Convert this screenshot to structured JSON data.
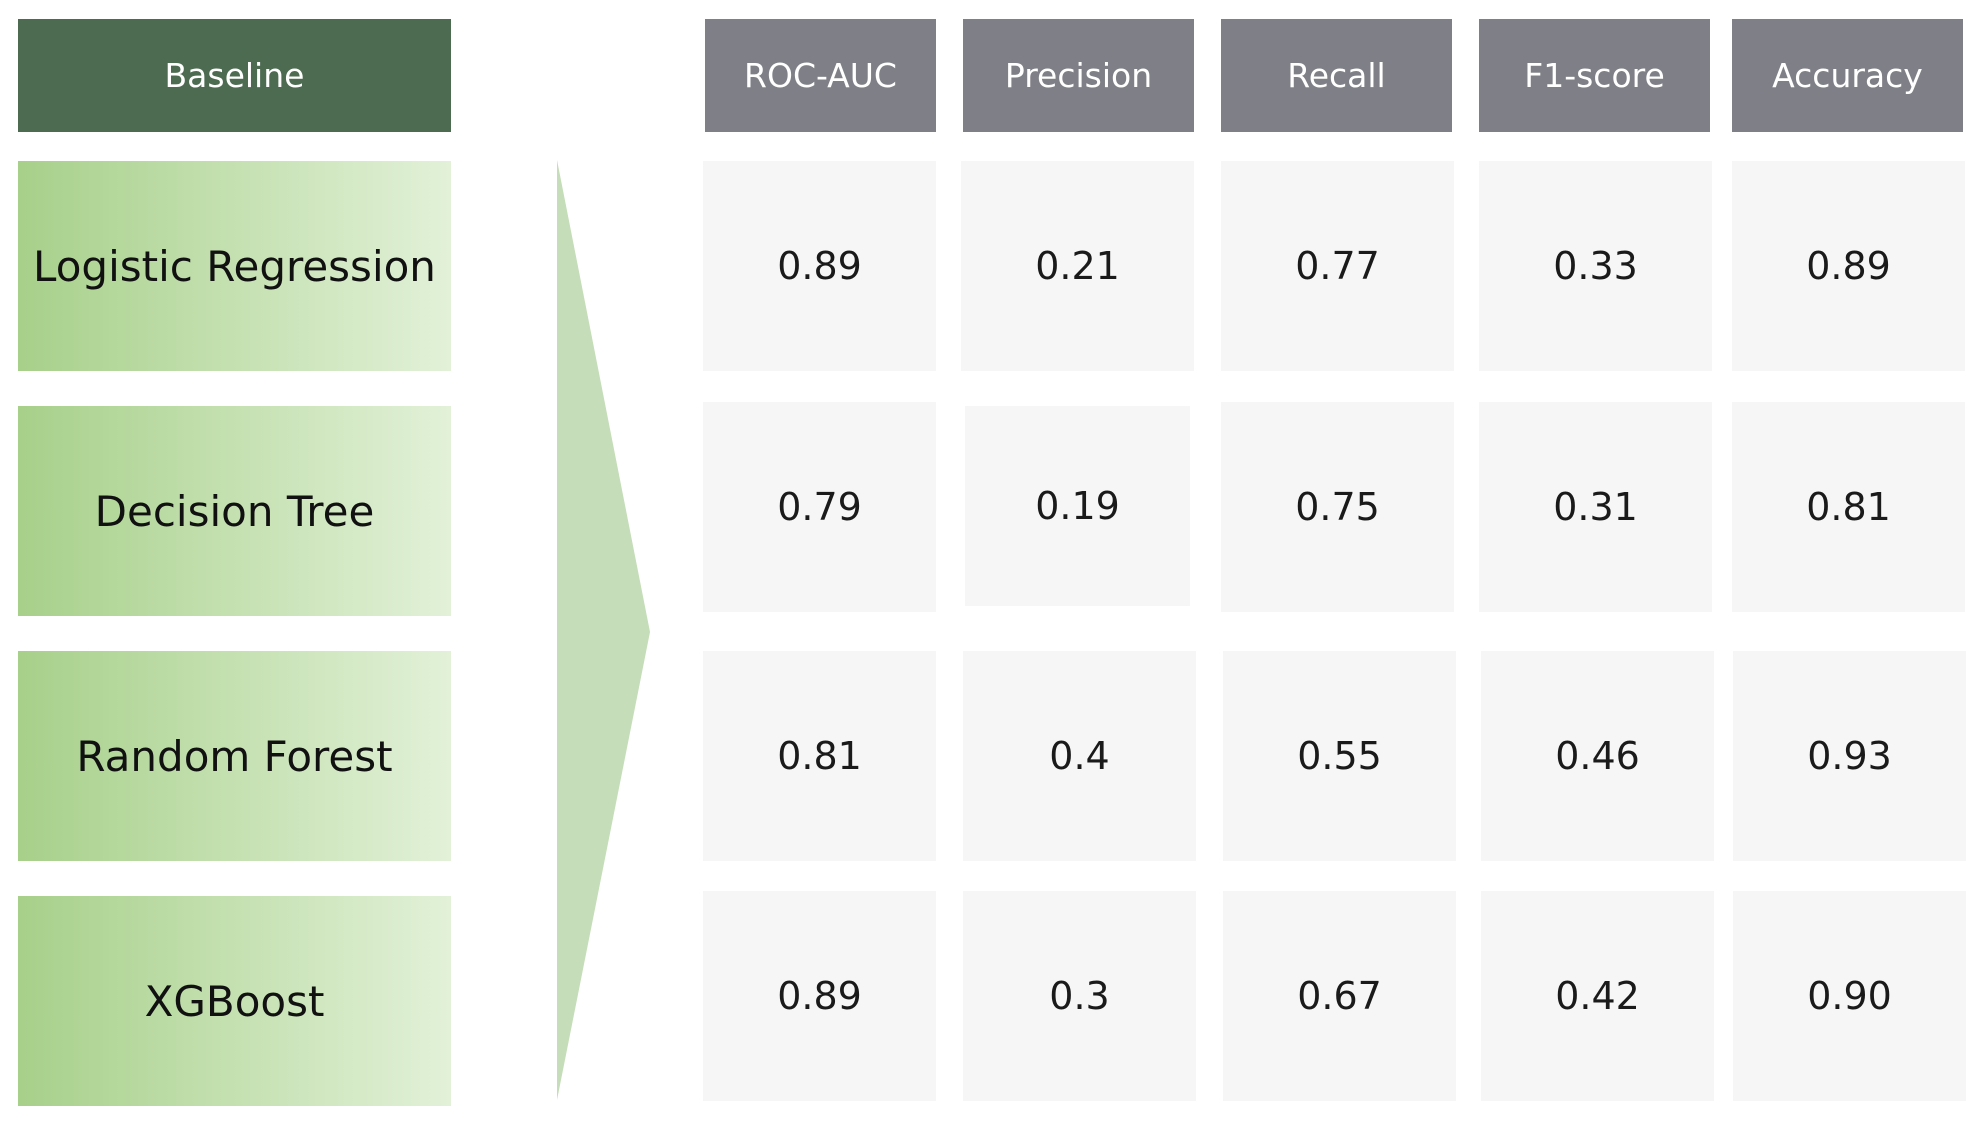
{
  "baseline_label": "Baseline",
  "metrics": [
    "ROC-AUC",
    "Precision",
    "Recall",
    "F1-score",
    "Accuracy"
  ],
  "models": [
    {
      "name": "Logistic Regression",
      "values": [
        "0.89",
        "0.21",
        "0.77",
        "0.33",
        "0.89"
      ]
    },
    {
      "name": "Decision Tree",
      "values": [
        "0.79",
        "0.19",
        "0.75",
        "0.31",
        "0.81"
      ]
    },
    {
      "name": "Random Forest",
      "values": [
        "0.81",
        "0.4",
        "0.55",
        "0.46",
        "0.93"
      ]
    },
    {
      "name": "XGBoost",
      "values": [
        "0.89",
        "0.3",
        "0.67",
        "0.42",
        "0.90"
      ]
    }
  ],
  "colors": {
    "baseline_header": "#4c6b50",
    "metric_header": "#7f8087",
    "model_gradient_start": "#a7d08a",
    "model_gradient_end": "#e2f1d8",
    "arrow": "#c5ddb8",
    "cell": "#f6f6f6"
  }
}
